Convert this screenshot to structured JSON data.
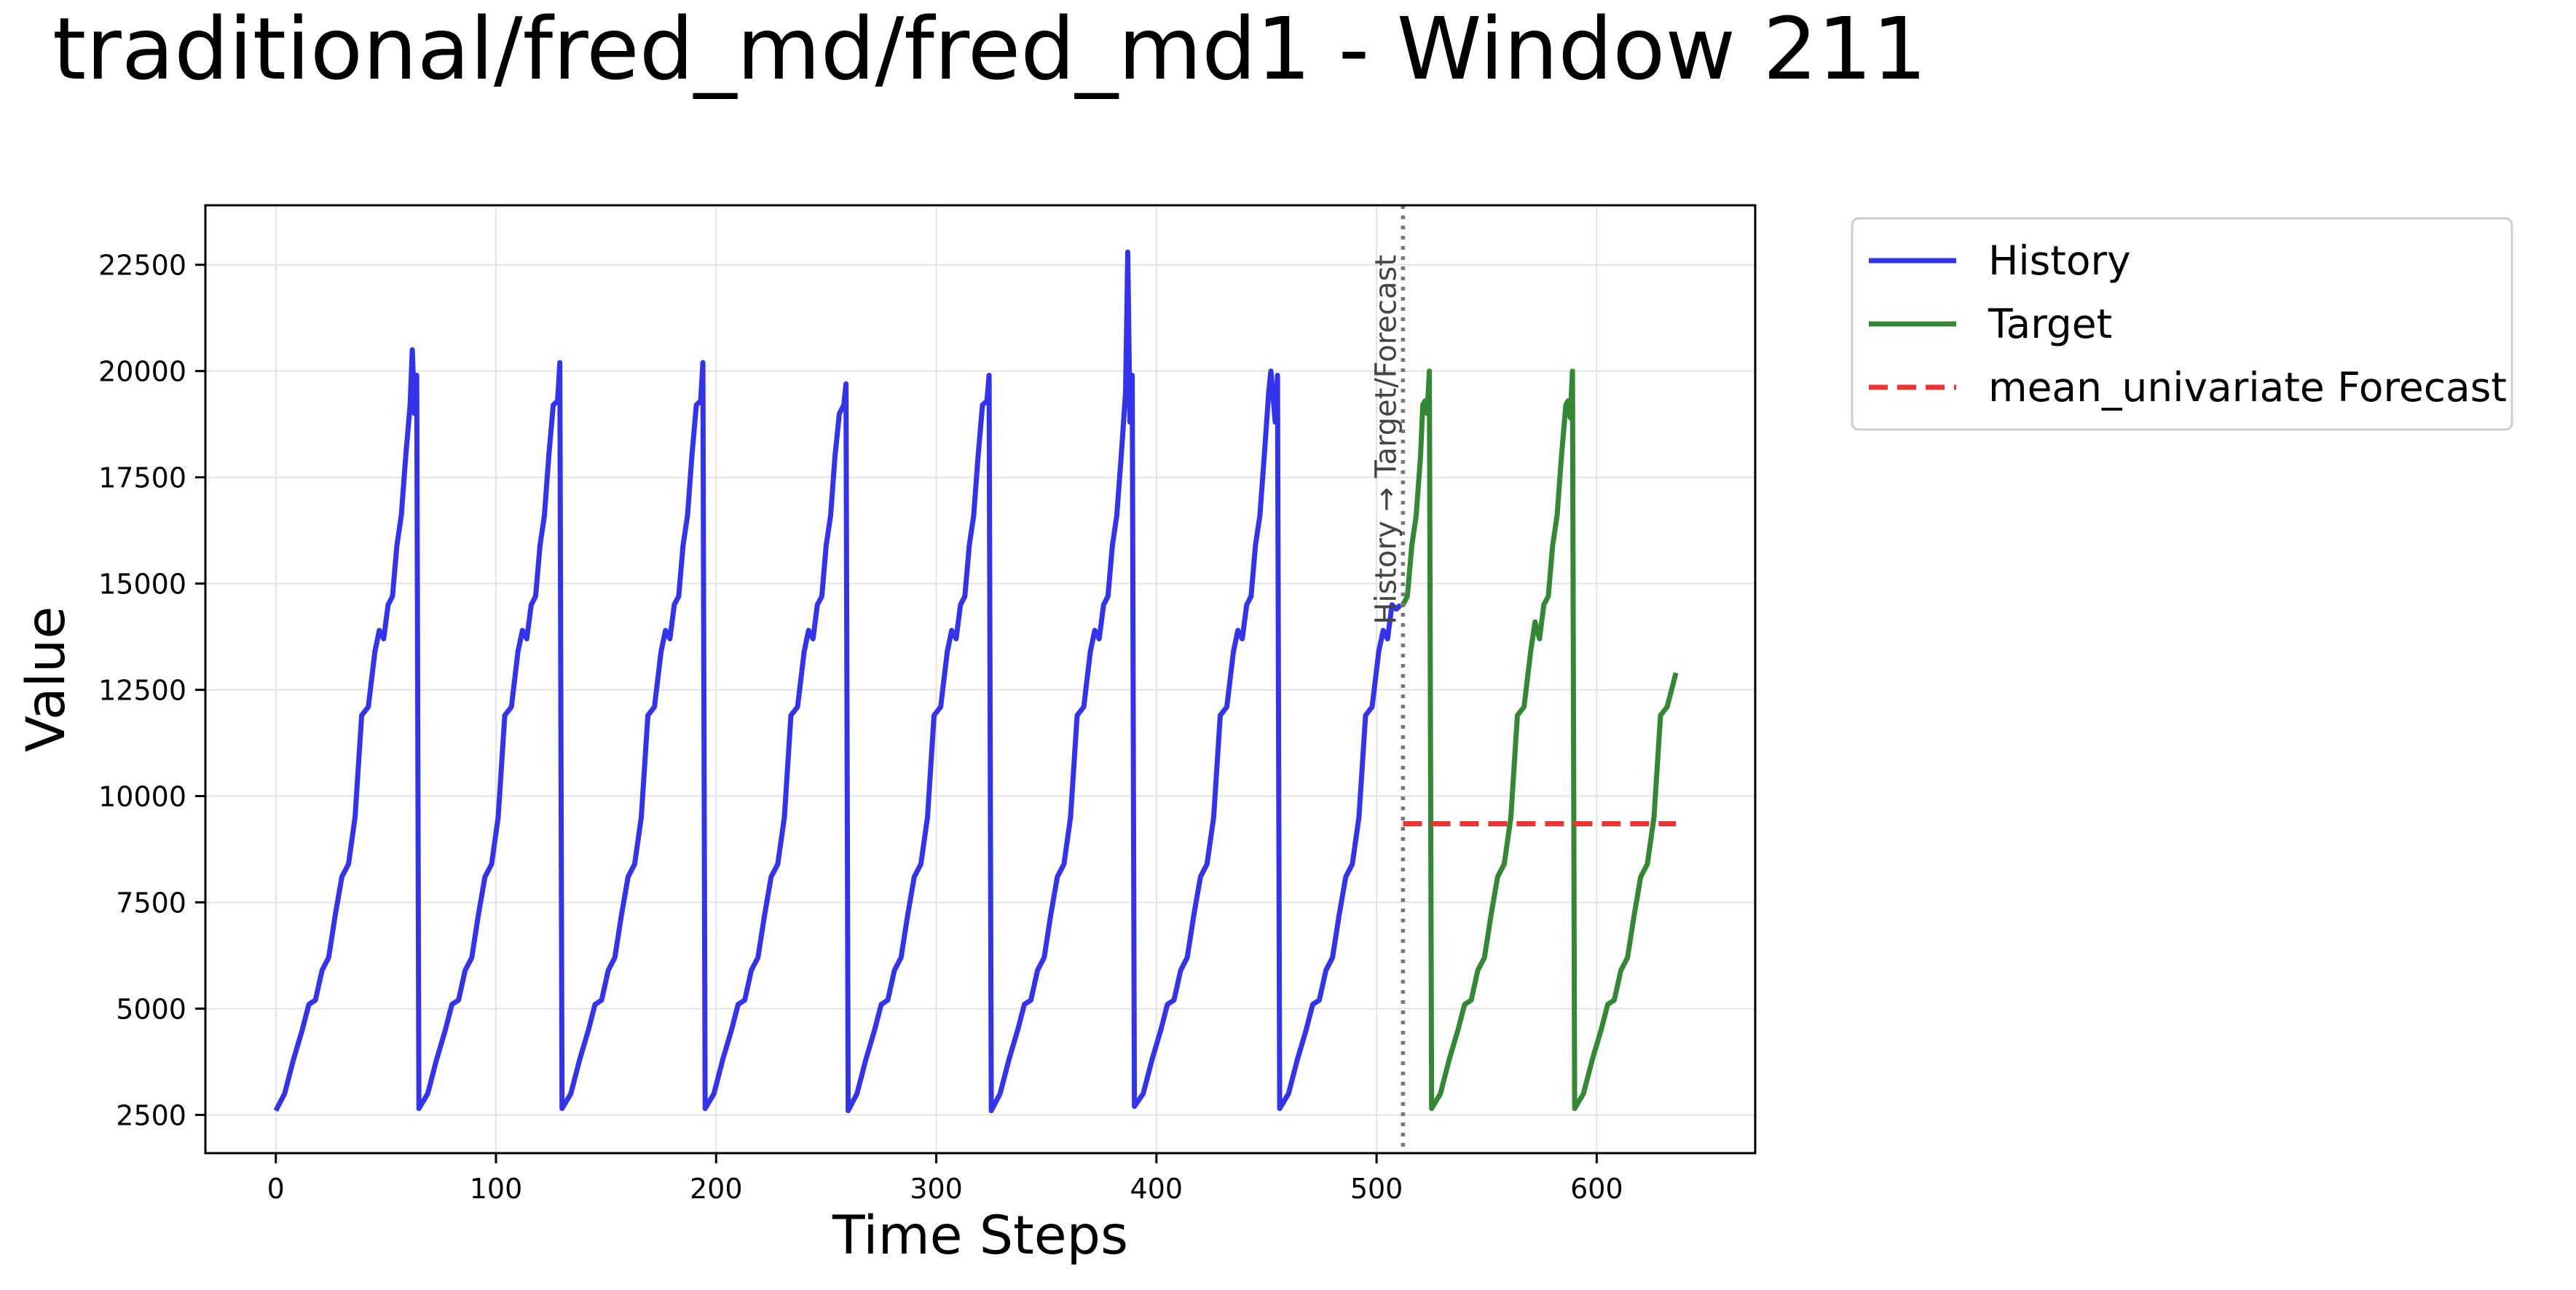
{
  "chart_data": {
    "type": "line",
    "title": "traditional/fred_md/fred_md1 - Window 211",
    "xlabel": "Time Steps",
    "ylabel": "Value",
    "xlim": [
      -32,
      672
    ],
    "ylim": [
      1600,
      23900
    ],
    "x_ticks": [
      0,
      100,
      200,
      300,
      400,
      500,
      600
    ],
    "y_ticks": [
      2500,
      5000,
      7500,
      10000,
      12500,
      15000,
      17500,
      20000,
      22500
    ],
    "grid": true,
    "legend_position": "outside-top-right",
    "vline": {
      "x": 512,
      "label": "History → Target/Forecast"
    },
    "series": [
      {
        "name": "History",
        "color": "#3333ee",
        "style": "solid",
        "points": [
          [
            0,
            2600
          ],
          [
            4,
            3000
          ],
          [
            8,
            3800
          ],
          [
            12,
            4500
          ],
          [
            15,
            5100
          ],
          [
            18,
            5200
          ],
          [
            21,
            5900
          ],
          [
            24,
            6200
          ],
          [
            27,
            7200
          ],
          [
            30,
            8100
          ],
          [
            33,
            8400
          ],
          [
            36,
            9500
          ],
          [
            39,
            11900
          ],
          [
            42,
            12100
          ],
          [
            45,
            13400
          ],
          [
            47,
            13900
          ],
          [
            49,
            13700
          ],
          [
            51,
            14500
          ],
          [
            53,
            14700
          ],
          [
            55,
            15900
          ],
          [
            57,
            16600
          ],
          [
            59,
            18000
          ],
          [
            61,
            19200
          ],
          [
            62,
            20500
          ],
          [
            63,
            19000
          ],
          [
            64,
            19900
          ],
          [
            65,
            2650
          ],
          [
            69,
            3000
          ],
          [
            73,
            3800
          ],
          [
            77,
            4500
          ],
          [
            80,
            5100
          ],
          [
            83,
            5200
          ],
          [
            86,
            5900
          ],
          [
            89,
            6200
          ],
          [
            92,
            7200
          ],
          [
            95,
            8100
          ],
          [
            98,
            8400
          ],
          [
            101,
            9500
          ],
          [
            104,
            11900
          ],
          [
            107,
            12100
          ],
          [
            110,
            13400
          ],
          [
            112,
            13900
          ],
          [
            114,
            13700
          ],
          [
            116,
            14500
          ],
          [
            118,
            14700
          ],
          [
            120,
            15900
          ],
          [
            122,
            16600
          ],
          [
            124,
            18000
          ],
          [
            126,
            19200
          ],
          [
            128,
            19300
          ],
          [
            129,
            20200
          ],
          [
            130,
            2650
          ],
          [
            134,
            3000
          ],
          [
            138,
            3800
          ],
          [
            142,
            4500
          ],
          [
            145,
            5100
          ],
          [
            148,
            5200
          ],
          [
            151,
            5900
          ],
          [
            154,
            6200
          ],
          [
            157,
            7200
          ],
          [
            160,
            8100
          ],
          [
            163,
            8400
          ],
          [
            166,
            9500
          ],
          [
            169,
            11900
          ],
          [
            172,
            12100
          ],
          [
            175,
            13400
          ],
          [
            177,
            13900
          ],
          [
            179,
            13700
          ],
          [
            181,
            14500
          ],
          [
            183,
            14700
          ],
          [
            185,
            15900
          ],
          [
            187,
            16600
          ],
          [
            189,
            18000
          ],
          [
            191,
            19200
          ],
          [
            193,
            19300
          ],
          [
            194,
            20200
          ],
          [
            195,
            2650
          ],
          [
            199,
            3000
          ],
          [
            203,
            3800
          ],
          [
            207,
            4500
          ],
          [
            210,
            5100
          ],
          [
            213,
            5200
          ],
          [
            216,
            5900
          ],
          [
            219,
            6200
          ],
          [
            222,
            7200
          ],
          [
            225,
            8100
          ],
          [
            228,
            8400
          ],
          [
            231,
            9500
          ],
          [
            234,
            11900
          ],
          [
            237,
            12100
          ],
          [
            240,
            13400
          ],
          [
            242,
            13900
          ],
          [
            244,
            13700
          ],
          [
            246,
            14500
          ],
          [
            248,
            14700
          ],
          [
            250,
            15900
          ],
          [
            252,
            16600
          ],
          [
            254,
            18000
          ],
          [
            256,
            19000
          ],
          [
            258,
            19200
          ],
          [
            259,
            19700
          ],
          [
            260,
            2600
          ],
          [
            264,
            3000
          ],
          [
            268,
            3800
          ],
          [
            272,
            4500
          ],
          [
            275,
            5100
          ],
          [
            278,
            5200
          ],
          [
            281,
            5900
          ],
          [
            284,
            6200
          ],
          [
            287,
            7200
          ],
          [
            290,
            8100
          ],
          [
            293,
            8400
          ],
          [
            296,
            9500
          ],
          [
            299,
            11900
          ],
          [
            302,
            12100
          ],
          [
            305,
            13400
          ],
          [
            307,
            13900
          ],
          [
            309,
            13700
          ],
          [
            311,
            14500
          ],
          [
            313,
            14700
          ],
          [
            315,
            15900
          ],
          [
            317,
            16600
          ],
          [
            319,
            18000
          ],
          [
            321,
            19200
          ],
          [
            323,
            19300
          ],
          [
            324,
            19900
          ],
          [
            325,
            2600
          ],
          [
            329,
            3000
          ],
          [
            333,
            3800
          ],
          [
            337,
            4500
          ],
          [
            340,
            5100
          ],
          [
            343,
            5200
          ],
          [
            346,
            5900
          ],
          [
            349,
            6200
          ],
          [
            352,
            7200
          ],
          [
            355,
            8100
          ],
          [
            358,
            8400
          ],
          [
            361,
            9500
          ],
          [
            364,
            11900
          ],
          [
            367,
            12100
          ],
          [
            370,
            13400
          ],
          [
            372,
            13900
          ],
          [
            374,
            13700
          ],
          [
            376,
            14500
          ],
          [
            378,
            14700
          ],
          [
            380,
            15900
          ],
          [
            382,
            16600
          ],
          [
            384,
            18000
          ],
          [
            386,
            19500
          ],
          [
            387,
            22800
          ],
          [
            388,
            18800
          ],
          [
            389,
            19900
          ],
          [
            390,
            2700
          ],
          [
            394,
            3000
          ],
          [
            398,
            3800
          ],
          [
            402,
            4500
          ],
          [
            405,
            5100
          ],
          [
            408,
            5200
          ],
          [
            411,
            5900
          ],
          [
            414,
            6200
          ],
          [
            417,
            7200
          ],
          [
            420,
            8100
          ],
          [
            423,
            8400
          ],
          [
            426,
            9500
          ],
          [
            429,
            11900
          ],
          [
            432,
            12100
          ],
          [
            435,
            13400
          ],
          [
            437,
            13900
          ],
          [
            439,
            13700
          ],
          [
            441,
            14500
          ],
          [
            443,
            14700
          ],
          [
            445,
            15900
          ],
          [
            447,
            16600
          ],
          [
            449,
            18000
          ],
          [
            451,
            19500
          ],
          [
            452,
            20000
          ],
          [
            454,
            18800
          ],
          [
            455,
            19900
          ],
          [
            456,
            2650
          ],
          [
            460,
            3000
          ],
          [
            464,
            3800
          ],
          [
            468,
            4500
          ],
          [
            471,
            5100
          ],
          [
            474,
            5200
          ],
          [
            477,
            5900
          ],
          [
            480,
            6200
          ],
          [
            483,
            7200
          ],
          [
            486,
            8100
          ],
          [
            489,
            8400
          ],
          [
            492,
            9500
          ],
          [
            495,
            11900
          ],
          [
            498,
            12100
          ],
          [
            501,
            13400
          ],
          [
            503,
            13900
          ],
          [
            505,
            13700
          ],
          [
            507,
            14500
          ],
          [
            509,
            14400
          ],
          [
            511,
            14500
          ]
        ]
      },
      {
        "name": "Target",
        "color": "#338833",
        "style": "solid",
        "points": [
          [
            511,
            14500
          ],
          [
            512,
            14500
          ],
          [
            514,
            14700
          ],
          [
            516,
            15900
          ],
          [
            518,
            16600
          ],
          [
            520,
            18000
          ],
          [
            521,
            19200
          ],
          [
            522,
            19300
          ],
          [
            523,
            19000
          ],
          [
            524,
            20000
          ],
          [
            525,
            2650
          ],
          [
            529,
            3000
          ],
          [
            533,
            3800
          ],
          [
            537,
            4500
          ],
          [
            540,
            5100
          ],
          [
            543,
            5200
          ],
          [
            546,
            5900
          ],
          [
            549,
            6200
          ],
          [
            552,
            7200
          ],
          [
            555,
            8100
          ],
          [
            558,
            8400
          ],
          [
            561,
            9500
          ],
          [
            564,
            11900
          ],
          [
            567,
            12100
          ],
          [
            570,
            13400
          ],
          [
            572,
            14100
          ],
          [
            574,
            13700
          ],
          [
            576,
            14500
          ],
          [
            578,
            14700
          ],
          [
            580,
            15900
          ],
          [
            582,
            16600
          ],
          [
            584,
            18000
          ],
          [
            586,
            19200
          ],
          [
            587,
            19300
          ],
          [
            588,
            18900
          ],
          [
            589,
            20000
          ],
          [
            590,
            2650
          ],
          [
            594,
            3000
          ],
          [
            598,
            3800
          ],
          [
            602,
            4500
          ],
          [
            605,
            5100
          ],
          [
            608,
            5200
          ],
          [
            611,
            5900
          ],
          [
            614,
            6200
          ],
          [
            617,
            7200
          ],
          [
            620,
            8100
          ],
          [
            623,
            8400
          ],
          [
            626,
            9500
          ],
          [
            629,
            11900
          ],
          [
            632,
            12100
          ],
          [
            636,
            12900
          ]
        ]
      },
      {
        "name": "mean_univariate Forecast",
        "color": "#ee3333",
        "style": "dashed",
        "points": [
          [
            512,
            9350
          ],
          [
            636,
            9350
          ]
        ]
      }
    ]
  }
}
